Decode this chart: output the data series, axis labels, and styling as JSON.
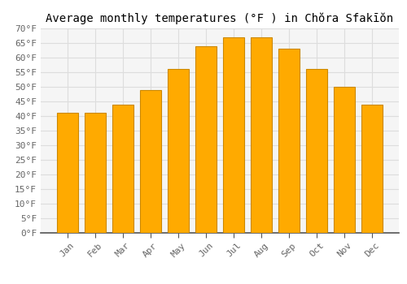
{
  "title": "Average monthly temperatures (°F ) in Chŏra Sfakīŏn",
  "months": [
    "Jan",
    "Feb",
    "Mar",
    "Apr",
    "May",
    "Jun",
    "Jul",
    "Aug",
    "Sep",
    "Oct",
    "Nov",
    "Dec"
  ],
  "values": [
    41,
    41,
    44,
    49,
    56,
    64,
    67,
    67,
    63,
    56,
    50,
    44
  ],
  "bar_color": "#FFAA00",
  "bar_edge_color": "#CC8800",
  "background_color": "#FFFFFF",
  "plot_bg_color": "#F5F5F5",
  "grid_color": "#DDDDDD",
  "ylim": [
    0,
    70
  ],
  "ytick_step": 5,
  "title_fontsize": 10,
  "tick_fontsize": 8,
  "font_family": "monospace"
}
